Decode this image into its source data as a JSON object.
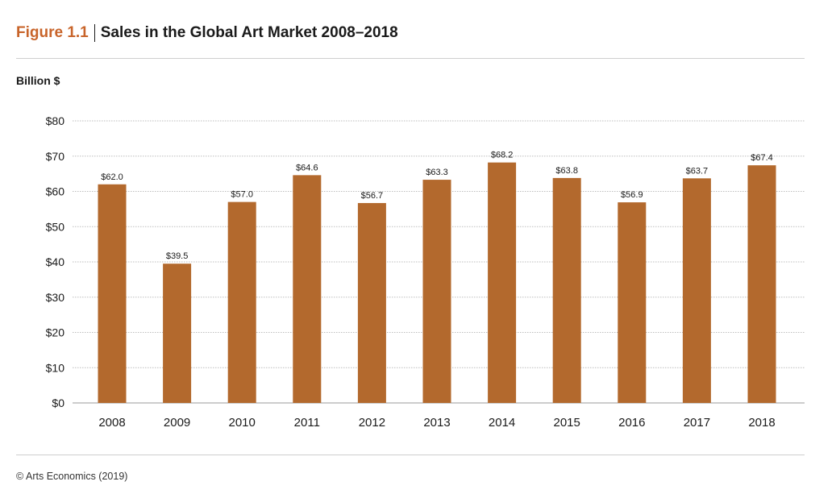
{
  "header": {
    "figure_label": "Figure 1.1",
    "title": "Sales in the Global Art Market 2008–2018"
  },
  "unit_label": "Billion $",
  "source": "© Arts Economics (2019)",
  "colors": {
    "accent": "#c8642a",
    "bar": "#b3692d",
    "grid": "#bdbdbd"
  },
  "chart_data": {
    "type": "bar",
    "title": "Sales in the Global Art Market 2008–2018",
    "ylabel": "Billion $",
    "xlabel": "",
    "ylim": [
      0,
      80
    ],
    "yticks": [
      0,
      10,
      20,
      30,
      40,
      50,
      60,
      70,
      80
    ],
    "ytick_labels": [
      "$0",
      "$10",
      "$20",
      "$30",
      "$40",
      "$50",
      "$60",
      "$70",
      "$80"
    ],
    "grid": true,
    "categories": [
      "2008",
      "2009",
      "2010",
      "2011",
      "2012",
      "2013",
      "2014",
      "2015",
      "2016",
      "2017",
      "2018"
    ],
    "values": [
      62.0,
      39.5,
      57.0,
      64.6,
      56.7,
      63.3,
      68.2,
      63.8,
      56.9,
      63.7,
      67.4
    ],
    "data_labels": [
      "$62.0",
      "$39.5",
      "$57.0",
      "$64.6",
      "$56.7",
      "$63.3",
      "$68.2",
      "$63.8",
      "$56.9",
      "$63.7",
      "$67.4"
    ]
  }
}
